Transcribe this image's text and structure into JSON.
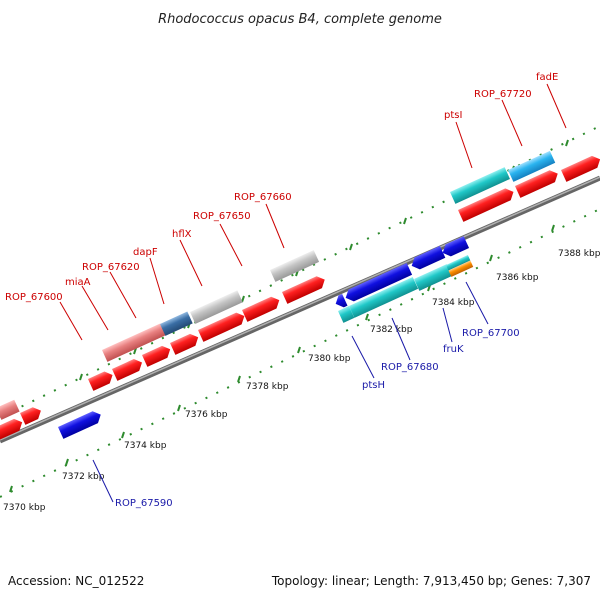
{
  "title": "Rhodococcus opacus B4, complete genome",
  "footer": {
    "accession": "Accession: NC_012522",
    "topology": "Topology: linear; Length: 7,913,450 bp; Genes: 7,307"
  },
  "scale_labels": [
    "7370 kbp",
    "7372 kbp",
    "7374 kbp",
    "7376 kbp",
    "7378 kbp",
    "7380 kbp",
    "7382 kbp",
    "7384 kbp",
    "7386 kbp",
    "7388 kbp"
  ],
  "gene_labels_forward": [
    "ROP_67600",
    "miaA",
    "ROP_67620",
    "dapF",
    "hflX",
    "ROP_67650",
    "ROP_67660",
    "ptsI",
    "ROP_67720",
    "fadE"
  ],
  "gene_labels_reverse": [
    "ROP_67590",
    "ptsH",
    "ROP_67680",
    "fruK",
    "ROP_67700"
  ],
  "colors": {
    "forward_gene": "#ff1a1a",
    "reverse_gene": "#1010e0",
    "teal": "#20c8c8",
    "light_blue": "#2ab4f0",
    "grey": "#bbbbbb",
    "pink": "#e88080",
    "steel_blue": "#3a6ea5",
    "orange": "#ff9000",
    "backbone": "#888888",
    "tick": "#2e8b2e"
  }
}
